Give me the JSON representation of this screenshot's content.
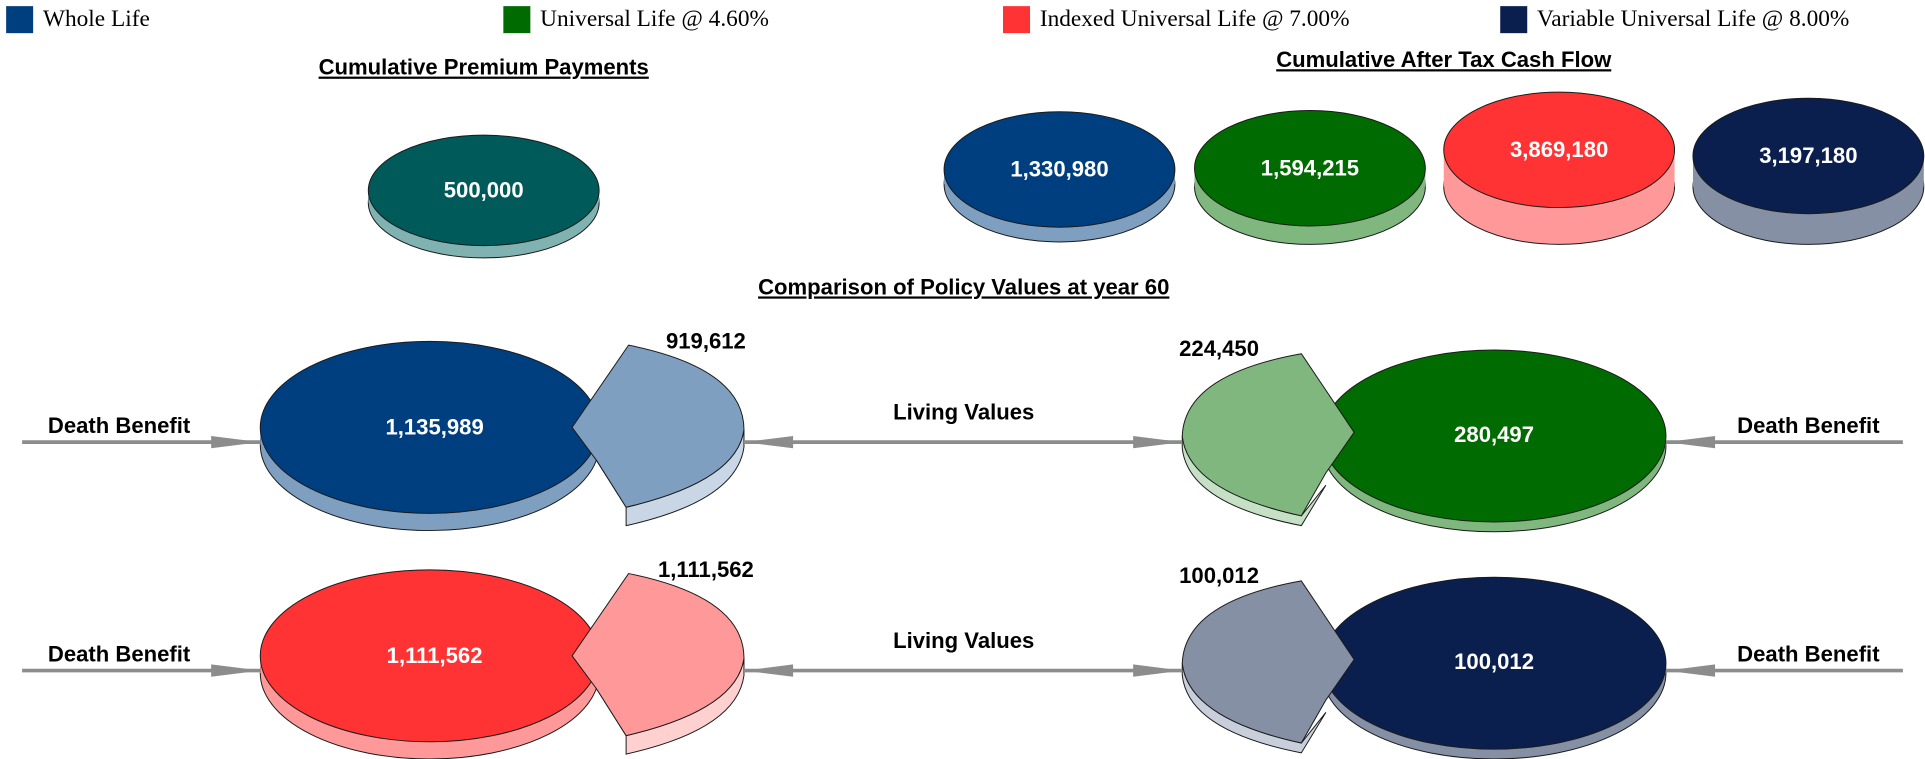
{
  "legend": [
    {
      "name": "Whole Life",
      "color": "#003f7f"
    },
    {
      "name": "Universal Life @ 4.60%",
      "color": "#006b00"
    },
    {
      "name": "Indexed Universal Life @ 7.00%",
      "color": "#ff3333"
    },
    {
      "name": "Variable Universal Life @ 8.00%",
      "color": "#0a1f4d"
    }
  ],
  "premium": {
    "title": "Cumulative Premium Payments",
    "value": "500,000"
  },
  "cash_flow": {
    "title": "Cumulative After Tax Cash Flow",
    "values": [
      "1,330,980",
      "1,594,215",
      "3,869,180",
      "3,197,180"
    ]
  },
  "comparison": {
    "title": "Comparison of Policy Values at year 60",
    "rows": [
      {
        "left_label": "Death Benefit",
        "left_death_benefit": "1,135,989",
        "left_living_value": "919,612",
        "center_label": "Living Values",
        "right_living_value": "224,450",
        "right_death_benefit": "280,497",
        "right_label": "Death Benefit"
      },
      {
        "left_label": "Death Benefit",
        "left_death_benefit": "1,111,562",
        "left_living_value": "1,111,562",
        "center_label": "Living Values",
        "right_living_value": "100,012",
        "right_death_benefit": "100,012",
        "right_label": "Death Benefit"
      }
    ]
  }
}
